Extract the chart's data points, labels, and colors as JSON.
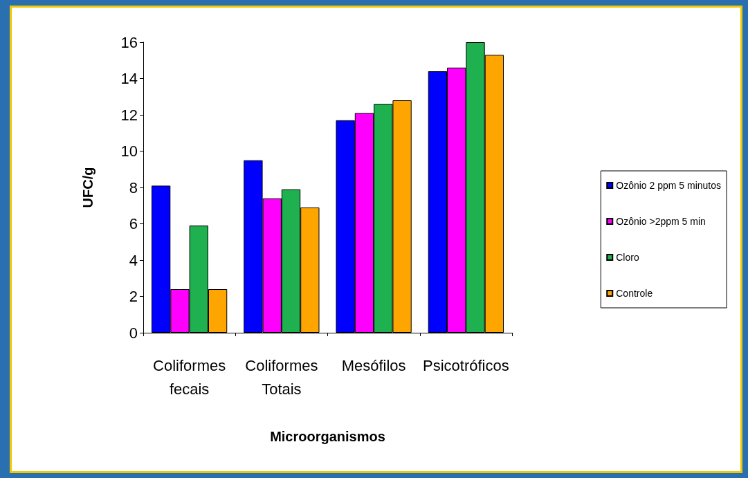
{
  "chart_data": {
    "type": "bar",
    "xlabel": "Microorganismos",
    "ylabel": "UFC/g",
    "categories": [
      "Coliformes\nfecais",
      "Coliformes\nTotais",
      "Mesófilos",
      "Psicotróficos"
    ],
    "series": [
      {
        "name": "Ozônio 2 ppm 5 minutos",
        "color": "#0000ff",
        "values": [
          8.1,
          9.5,
          11.7,
          14.4
        ]
      },
      {
        "name": "Ozônio >2ppm 5 min",
        "color": "#ff00ff",
        "values": [
          2.4,
          7.4,
          12.1,
          14.6
        ]
      },
      {
        "name": "Cloro",
        "color": "#1fb050",
        "values": [
          5.9,
          7.9,
          12.6,
          16.0
        ]
      },
      {
        "name": "Controle",
        "color": "#ffa500",
        "values": [
          2.4,
          6.9,
          12.8,
          15.3
        ]
      }
    ],
    "ylim": [
      0,
      16
    ],
    "yticks": [
      0,
      2,
      4,
      6,
      8,
      10,
      12,
      14,
      16
    ],
    "grid": false,
    "legend": "right"
  }
}
